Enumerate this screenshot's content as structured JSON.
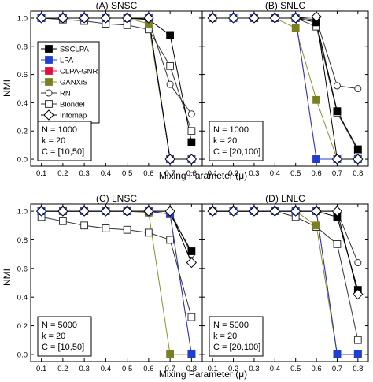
{
  "figure": {
    "ylabel": "NMI",
    "xlabel": "Mixing Parameter (μ)"
  },
  "styles": {
    "SSCLPA": {
      "marker": "square",
      "fill": "#000000",
      "stroke": "#000000",
      "line": "#000000"
    },
    "LPA": {
      "marker": "square",
      "fill": "#1f3fcf",
      "stroke": "#1f3fcf",
      "line": "#1f3fcf"
    },
    "CLPA-GNR": {
      "marker": "square",
      "fill": "#e0103a",
      "stroke": "#e0103a",
      "line": "#e0103a"
    },
    "GANXiS": {
      "marker": "square",
      "fill": "#7a8020",
      "stroke": "#7a8020",
      "line": "#8a8f30"
    },
    "RN": {
      "marker": "circle",
      "fill": "#ffffff",
      "stroke": "#333333",
      "line": "#333333"
    },
    "Blondel": {
      "marker": "square",
      "fill": "#ffffff",
      "stroke": "#333333",
      "line": "#333333"
    },
    "Infomap": {
      "marker": "diamond",
      "fill": "#ffffff",
      "stroke": "#000000",
      "line": "#000000"
    }
  },
  "chart_data": [
    {
      "type": "line",
      "title": "(A) SNSC",
      "x": [
        0.1,
        0.2,
        0.3,
        0.4,
        0.5,
        0.6,
        0.7,
        0.8
      ],
      "xticks": [
        "0.1",
        "0.2",
        "0.3",
        "0.4",
        "0.5",
        "0.6",
        "0.7",
        "0.8"
      ],
      "yticks": [
        "0.0",
        "0.2",
        "0.4",
        "0.6",
        "0.8",
        "1.0"
      ],
      "xlim": [
        0.05,
        0.85
      ],
      "ylim": [
        -0.05,
        1.05
      ],
      "legend": [
        "SSCLPA",
        "LPA",
        "CLPA-GNR",
        "GANXiS",
        "RN",
        "Blondel",
        "Infomap"
      ],
      "info": [
        "N = 1000",
        "k = 20",
        "C = [10,50]"
      ],
      "series": [
        {
          "name": "RN",
          "values": [
            1.0,
            1.0,
            1.0,
            1.0,
            1.0,
            0.99,
            0.53,
            0.32
          ]
        },
        {
          "name": "Blondel",
          "values": [
            1.0,
            0.99,
            0.98,
            0.96,
            0.95,
            0.92,
            0.66,
            0.2
          ]
        },
        {
          "name": "SSCLPA",
          "values": [
            1.0,
            1.0,
            1.0,
            1.0,
            1.0,
            0.99,
            0.88,
            0.12
          ]
        },
        {
          "name": "GANXiS",
          "values": [
            1.0,
            1.0,
            1.0,
            1.0,
            1.0,
            0.96,
            0.0,
            0.0
          ]
        },
        {
          "name": "CLPA-GNR",
          "values": [
            1.0,
            1.0,
            1.0,
            1.0,
            1.0,
            1.0,
            0.0,
            0.0
          ]
        },
        {
          "name": "LPA",
          "values": [
            1.0,
            1.0,
            1.0,
            1.0,
            1.0,
            1.0,
            0.0,
            0.0
          ]
        },
        {
          "name": "Infomap",
          "values": [
            1.0,
            1.0,
            1.0,
            1.0,
            1.0,
            1.0,
            0.0,
            0.0
          ]
        }
      ]
    },
    {
      "type": "line",
      "title": "(B) SNLC",
      "x": [
        0.1,
        0.2,
        0.3,
        0.4,
        0.5,
        0.6,
        0.7,
        0.8
      ],
      "xticks": [
        "0.1",
        "0.2",
        "0.3",
        "0.4",
        "0.5",
        "0.6",
        "0.7",
        "0.8"
      ],
      "yticks": [],
      "xlim": [
        0.05,
        0.85
      ],
      "ylim": [
        -0.05,
        1.05
      ],
      "legend": [],
      "info": [
        "N = 1000",
        "k = 20",
        "C = [20,100]"
      ],
      "series": [
        {
          "name": "RN",
          "values": [
            1.0,
            1.0,
            1.0,
            1.0,
            1.0,
            0.99,
            0.52,
            0.5
          ]
        },
        {
          "name": "Blondel",
          "values": [
            1.0,
            1.0,
            1.0,
            1.0,
            1.0,
            0.94,
            0.33,
            0.06
          ]
        },
        {
          "name": "SSCLPA",
          "values": [
            1.0,
            1.0,
            1.0,
            1.0,
            1.0,
            0.97,
            0.34,
            0.07
          ]
        },
        {
          "name": "GANXiS",
          "values": [
            1.0,
            1.0,
            1.0,
            1.0,
            0.93,
            0.42,
            0.0,
            0.0
          ]
        },
        {
          "name": "CLPA-GNR",
          "values": [
            1.0,
            1.0,
            1.0,
            1.0,
            1.0,
            0.0,
            0.0,
            0.0
          ]
        },
        {
          "name": "LPA",
          "values": [
            1.0,
            1.0,
            1.0,
            1.0,
            1.0,
            0.0,
            0.0,
            0.0
          ]
        },
        {
          "name": "Infomap",
          "values": [
            1.0,
            1.0,
            1.0,
            1.0,
            1.0,
            1.01,
            0.0,
            0.0
          ]
        }
      ]
    },
    {
      "type": "line",
      "title": "(C) LNSC",
      "x": [
        0.1,
        0.2,
        0.3,
        0.4,
        0.5,
        0.6,
        0.7,
        0.8
      ],
      "xticks": [
        "0.1",
        "0.2",
        "0.3",
        "0.4",
        "0.5",
        "0.6",
        "0.7",
        "0.8"
      ],
      "yticks": [
        "0.0",
        "0.2",
        "0.4",
        "0.6",
        "0.8",
        "1.0"
      ],
      "xlim": [
        0.05,
        0.85
      ],
      "ylim": [
        -0.05,
        1.05
      ],
      "legend": [],
      "info": [
        "N = 5000",
        "k = 20",
        "C = [10,50]"
      ],
      "series": [
        {
          "name": "Blondel",
          "values": [
            0.96,
            0.93,
            0.9,
            0.88,
            0.87,
            0.85,
            0.8,
            0.26
          ]
        },
        {
          "name": "RN",
          "values": [
            1.0,
            1.0,
            1.0,
            1.0,
            1.0,
            1.0,
            1.0,
            0.7
          ]
        },
        {
          "name": "SSCLPA",
          "values": [
            1.0,
            1.0,
            1.0,
            1.0,
            1.0,
            1.0,
            0.98,
            0.72
          ]
        },
        {
          "name": "GANXiS",
          "values": [
            1.0,
            1.0,
            1.0,
            1.0,
            1.0,
            0.99,
            0.0,
            0.0
          ]
        },
        {
          "name": "CLPA-GNR",
          "values": [
            1.0,
            1.0,
            1.0,
            1.0,
            1.0,
            1.0,
            0.98,
            0.0
          ]
        },
        {
          "name": "LPA",
          "values": [
            1.0,
            1.0,
            1.0,
            1.0,
            1.0,
            1.0,
            0.98,
            0.0
          ]
        },
        {
          "name": "Infomap",
          "values": [
            1.0,
            1.0,
            1.0,
            1.0,
            1.0,
            1.0,
            1.0,
            0.64
          ]
        }
      ]
    },
    {
      "type": "line",
      "title": "(D) LNLC",
      "x": [
        0.1,
        0.2,
        0.3,
        0.4,
        0.5,
        0.6,
        0.7,
        0.8
      ],
      "xticks": [
        "0.1",
        "0.2",
        "0.3",
        "0.4",
        "0.5",
        "0.6",
        "0.7",
        "0.8"
      ],
      "yticks": [],
      "xlim": [
        0.05,
        0.85
      ],
      "ylim": [
        -0.05,
        1.05
      ],
      "legend": [],
      "info": [
        "N = 5000",
        "k = 20",
        "C = [20,100]"
      ],
      "series": [
        {
          "name": "Blondel",
          "values": [
            1.0,
            1.0,
            1.0,
            1.0,
            0.96,
            0.89,
            0.77,
            0.1
          ]
        },
        {
          "name": "RN",
          "values": [
            1.0,
            1.0,
            1.0,
            1.0,
            1.0,
            1.0,
            1.0,
            0.64
          ]
        },
        {
          "name": "SSCLPA",
          "values": [
            1.0,
            1.0,
            1.0,
            1.0,
            1.0,
            1.0,
            0.96,
            0.45
          ]
        },
        {
          "name": "GANXiS",
          "values": [
            1.0,
            1.0,
            1.0,
            1.0,
            1.0,
            0.9,
            0.0,
            0.0
          ]
        },
        {
          "name": "CLPA-GNR",
          "values": [
            1.0,
            1.0,
            1.0,
            1.0,
            1.0,
            1.0,
            0.0,
            0.0
          ]
        },
        {
          "name": "LPA",
          "values": [
            1.0,
            1.0,
            1.0,
            1.0,
            1.0,
            1.0,
            0.0,
            0.0
          ]
        },
        {
          "name": "Infomap",
          "values": [
            1.0,
            1.0,
            1.0,
            1.0,
            1.0,
            1.0,
            1.0,
            0.42
          ]
        }
      ]
    }
  ]
}
